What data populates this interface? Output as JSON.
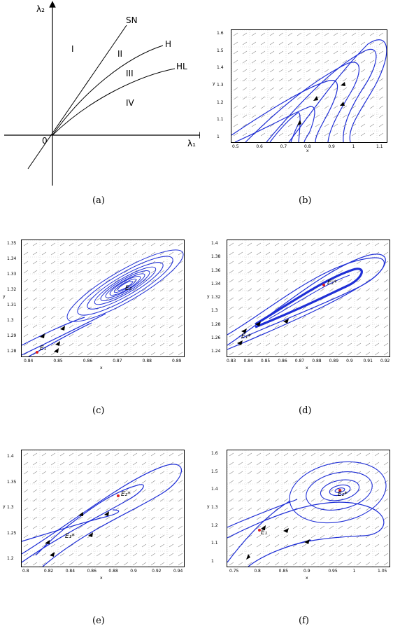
{
  "figure": {
    "panel_a": {
      "caption": "(a)",
      "y_axis_label": "λ₂",
      "x_axis_label": "λ₁",
      "origin_label": "0",
      "curve_labels": [
        "SN",
        "H",
        "HL"
      ],
      "region_labels": [
        "I",
        "II",
        "III",
        "IV"
      ]
    },
    "panel_b": {
      "caption": "(b)",
      "xlabel": "x",
      "ylabel": "y",
      "xticks": [
        "0.5",
        "0.6",
        "0.7",
        "0.8",
        "0.9",
        "1",
        "1.1"
      ],
      "yticks": [
        "1",
        "1.1",
        "1.2",
        "1.3",
        "1.4",
        "1.5",
        "1.6"
      ]
    },
    "panel_c": {
      "caption": "(c)",
      "xlabel": "x",
      "ylabel": "y",
      "xticks": [
        "0.84",
        "0.85",
        "0.86",
        "0.87",
        "0.88",
        "0.89"
      ],
      "yticks": [
        "1.28",
        "1.29",
        "1.3",
        "1.31",
        "1.32",
        "1.33",
        "1.34",
        "1.35"
      ],
      "point_labels": [
        "E₁",
        "E₂"
      ]
    },
    "panel_d": {
      "caption": "(d)",
      "xlabel": "x",
      "ylabel": "y",
      "xticks": [
        "0.83",
        "0.84",
        "0.85",
        "0.86",
        "0.87",
        "0.88",
        "0.89",
        "0.9",
        "0.91",
        "0.92"
      ],
      "yticks": [
        "1.24",
        "1.26",
        "1.28",
        "1.3",
        "1.32",
        "1.34",
        "1.36",
        "1.38",
        "1.4"
      ],
      "point_labels": [
        "E₁*",
        "E₂*"
      ]
    },
    "panel_e": {
      "caption": "(e)",
      "xlabel": "x",
      "ylabel": "y",
      "xticks": [
        "0.8",
        "0.82",
        "0.84",
        "0.86",
        "0.88",
        "0.9",
        "0.92",
        "0.94"
      ],
      "yticks": [
        "1.2",
        "1.25",
        "1.3",
        "1.35",
        "1.4"
      ],
      "point_labels": [
        "E₁*",
        "E₂*"
      ]
    },
    "panel_f": {
      "caption": "(f)",
      "xlabel": "x",
      "ylabel": "y",
      "xticks": [
        "0.75",
        "0.8",
        "0.85",
        "0.9",
        "0.95",
        "1",
        "1.05"
      ],
      "yticks": [
        "1",
        "1.1",
        "1.2",
        "1.3",
        "1.4",
        "1.5",
        "1.6"
      ],
      "point_labels": [
        "E₁",
        "E₂*"
      ]
    }
  },
  "colors": {
    "trajectory": "#1f2fd6",
    "equilibrium": "#e02020",
    "field": "#8a8a8a"
  }
}
